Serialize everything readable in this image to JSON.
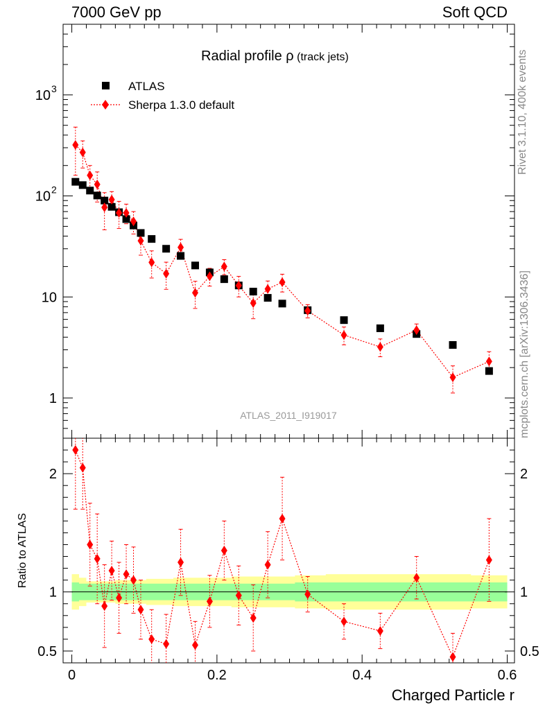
{
  "header": {
    "left": "7000 GeV pp",
    "right": "Soft QCD"
  },
  "side_labels": {
    "rivet": "Rivet 3.1.10,  400k events",
    "mcplots": "mcplots.cern.ch [arXiv:1306.3436]"
  },
  "chart_data": {
    "type": "scatter",
    "title_main": "Radial profile ",
    "title_symbol": "ρ",
    "title_sub": "(track jets)",
    "watermark": "ATLAS_2011_I919017",
    "xlabel": "Charged Particle r",
    "ylabel_ratio": "Ratio to ATLAS",
    "xlim": [
      -0.012,
      0.61
    ],
    "ylim_main": [
      0.4,
      5000
    ],
    "ylim_ratio": [
      0.4,
      2.3
    ],
    "x_ticks": [
      {
        "v": 0,
        "label": "0"
      },
      {
        "v": 0.2,
        "label": "0.2"
      },
      {
        "v": 0.4,
        "label": "0.4"
      },
      {
        "v": 0.6,
        "label": "0.6"
      }
    ],
    "y_ticks_main": [
      {
        "v": 1,
        "label": "1"
      },
      {
        "v": 10,
        "label": "10"
      },
      {
        "v": 100,
        "label": "10",
        "exp": "2"
      },
      {
        "v": 1000,
        "label": "10",
        "exp": "3"
      }
    ],
    "y_ticks_ratio": [
      {
        "v": 0.5,
        "label": "0.5"
      },
      {
        "v": 1,
        "label": "1"
      },
      {
        "v": 2,
        "label": "2"
      }
    ],
    "legend": [
      {
        "name": "ATLAS",
        "marker": "square",
        "color": "#000000"
      },
      {
        "name": "Sherpa 1.3.0 default",
        "marker": "diamond",
        "color": "#ff0000"
      }
    ],
    "series": [
      {
        "name": "ATLAS",
        "x": [
          0.005,
          0.015,
          0.025,
          0.035,
          0.045,
          0.055,
          0.065,
          0.075,
          0.085,
          0.095,
          0.11,
          0.13,
          0.15,
          0.17,
          0.19,
          0.21,
          0.23,
          0.25,
          0.27,
          0.29,
          0.325,
          0.375,
          0.425,
          0.475,
          0.525,
          0.575
        ],
        "values": [
          138,
          128,
          113,
          101,
          90,
          78,
          69,
          59,
          51,
          43,
          37.5,
          30,
          25.5,
          20.5,
          17.5,
          15,
          13,
          11.3,
          9.8,
          8.6,
          7.4,
          5.9,
          4.9,
          4.3,
          3.35,
          1.85
        ],
        "band_inner": [
          0.08,
          0.07,
          0.07,
          0.07,
          0.07,
          0.07,
          0.07,
          0.07,
          0.07,
          0.07,
          0.07,
          0.07,
          0.07,
          0.07,
          0.07,
          0.07,
          0.07,
          0.07,
          0.07,
          0.07,
          0.08,
          0.08,
          0.08,
          0.08,
          0.08,
          0.08
        ],
        "band_outer": [
          0.15,
          0.12,
          0.09,
          0.09,
          0.09,
          0.09,
          0.1,
          0.1,
          0.1,
          0.1,
          0.11,
          0.11,
          0.12,
          0.12,
          0.12,
          0.12,
          0.13,
          0.13,
          0.13,
          0.13,
          0.14,
          0.15,
          0.15,
          0.15,
          0.15,
          0.14
        ]
      },
      {
        "name": "Sherpa 1.3.0 default",
        "x": [
          0.005,
          0.015,
          0.025,
          0.035,
          0.045,
          0.055,
          0.065,
          0.075,
          0.085,
          0.095,
          0.11,
          0.13,
          0.15,
          0.17,
          0.19,
          0.21,
          0.23,
          0.25,
          0.27,
          0.29,
          0.325,
          0.375,
          0.425,
          0.475,
          0.525,
          0.575
        ],
        "values": [
          320,
          270,
          160,
          130,
          77,
          92,
          68,
          68,
          56,
          36,
          22,
          17,
          31,
          11,
          16,
          20,
          13,
          8.7,
          12,
          14,
          7.3,
          4.2,
          3.2,
          4.7,
          1.6,
          2.3
        ],
        "err_frac": [
          0.5,
          0.3,
          0.25,
          0.33,
          0.4,
          0.2,
          0.3,
          0.22,
          0.25,
          0.28,
          0.3,
          0.3,
          0.2,
          0.3,
          0.2,
          0.17,
          0.23,
          0.3,
          0.2,
          0.2,
          0.15,
          0.2,
          0.2,
          0.15,
          0.3,
          0.25
        ],
        "ratio": [
          2.2,
          2.05,
          1.4,
          1.28,
          0.88,
          1.18,
          0.95,
          1.15,
          1.1,
          0.85,
          0.6,
          0.56,
          1.25,
          0.55,
          0.92,
          1.35,
          0.97,
          0.78,
          1.23,
          1.62,
          0.98,
          0.75,
          0.67,
          1.12,
          0.45,
          1.27
        ],
        "ratio_err": [
          0.5,
          0.35,
          0.35,
          0.38,
          0.35,
          0.25,
          0.3,
          0.25,
          0.28,
          0.25,
          0.25,
          0.25,
          0.28,
          0.2,
          0.22,
          0.25,
          0.25,
          0.28,
          0.28,
          0.35,
          0.15,
          0.15,
          0.15,
          0.18,
          0.2,
          0.35
        ]
      }
    ]
  }
}
